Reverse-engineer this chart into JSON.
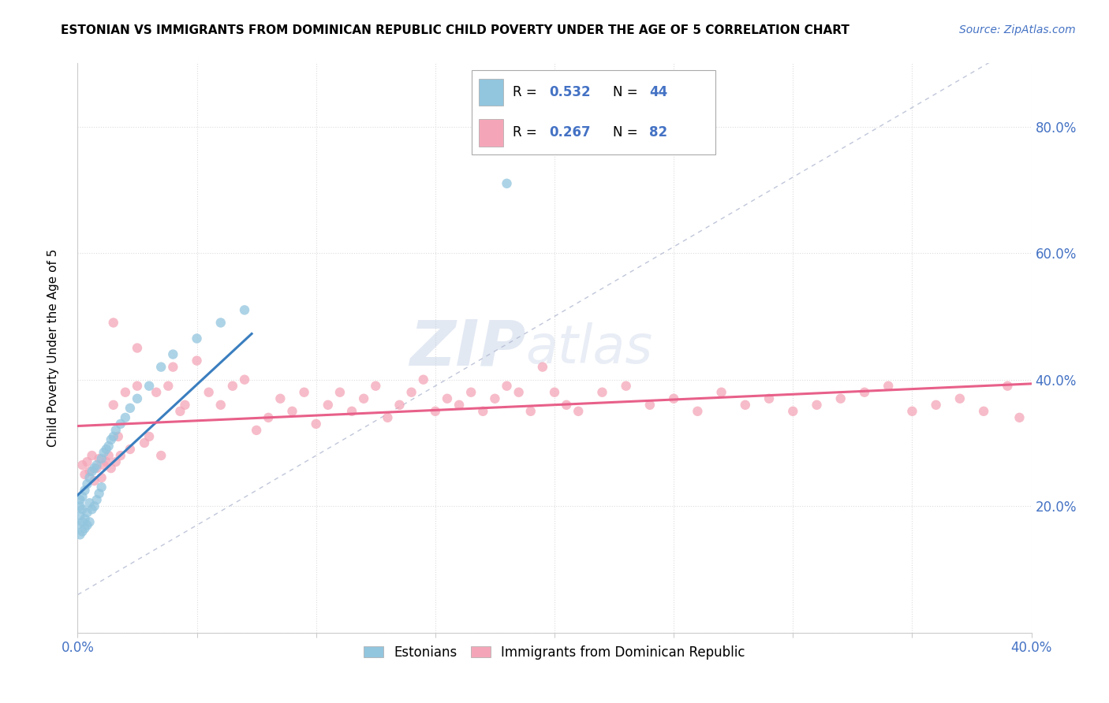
{
  "title": "ESTONIAN VS IMMIGRANTS FROM DOMINICAN REPUBLIC CHILD POVERTY UNDER THE AGE OF 5 CORRELATION CHART",
  "source": "Source: ZipAtlas.com",
  "ylabel": "Child Poverty Under the Age of 5",
  "right_yticks": [
    "20.0%",
    "40.0%",
    "60.0%",
    "80.0%"
  ],
  "right_ytick_vals": [
    0.2,
    0.4,
    0.6,
    0.8
  ],
  "xlim": [
    0.0,
    0.4
  ],
  "ylim": [
    0.0,
    0.9
  ],
  "blue_color": "#92c5de",
  "pink_color": "#f4a6b8",
  "blue_line_color": "#3a7ebf",
  "pink_line_color": "#e8608a",
  "diag_color": "#b0b8d0",
  "watermark_color": "#c8d4e8",
  "grid_color": "#dddddd",
  "tick_color": "#4472c4",
  "title_fontsize": 11,
  "source_fontsize": 10,
  "tick_fontsize": 12,
  "ylabel_fontsize": 11,
  "scatter_size": 80,
  "scatter_alpha": 0.75,
  "est_x": [
    0.0,
    0.001,
    0.001,
    0.001,
    0.001,
    0.002,
    0.002,
    0.002,
    0.002,
    0.003,
    0.003,
    0.003,
    0.004,
    0.004,
    0.004,
    0.005,
    0.005,
    0.005,
    0.006,
    0.006,
    0.007,
    0.007,
    0.008,
    0.008,
    0.009,
    0.01,
    0.01,
    0.011,
    0.012,
    0.013,
    0.014,
    0.015,
    0.016,
    0.018,
    0.02,
    0.022,
    0.025,
    0.03,
    0.035,
    0.04,
    0.05,
    0.06,
    0.07,
    0.18
  ],
  "est_y": [
    0.17,
    0.155,
    0.185,
    0.2,
    0.21,
    0.16,
    0.175,
    0.195,
    0.215,
    0.165,
    0.18,
    0.225,
    0.17,
    0.19,
    0.235,
    0.175,
    0.205,
    0.245,
    0.195,
    0.255,
    0.2,
    0.26,
    0.21,
    0.265,
    0.22,
    0.23,
    0.275,
    0.285,
    0.29,
    0.295,
    0.305,
    0.31,
    0.32,
    0.33,
    0.34,
    0.355,
    0.37,
    0.39,
    0.42,
    0.44,
    0.465,
    0.49,
    0.51,
    0.71
  ],
  "dom_x": [
    0.002,
    0.003,
    0.004,
    0.005,
    0.006,
    0.007,
    0.008,
    0.009,
    0.01,
    0.011,
    0.012,
    0.013,
    0.014,
    0.015,
    0.016,
    0.017,
    0.018,
    0.02,
    0.022,
    0.025,
    0.028,
    0.03,
    0.033,
    0.035,
    0.038,
    0.04,
    0.043,
    0.045,
    0.05,
    0.055,
    0.06,
    0.065,
    0.07,
    0.075,
    0.08,
    0.085,
    0.09,
    0.095,
    0.1,
    0.105,
    0.11,
    0.115,
    0.12,
    0.125,
    0.13,
    0.135,
    0.14,
    0.145,
    0.15,
    0.155,
    0.16,
    0.165,
    0.17,
    0.175,
    0.18,
    0.185,
    0.19,
    0.195,
    0.2,
    0.205,
    0.21,
    0.22,
    0.23,
    0.24,
    0.25,
    0.26,
    0.27,
    0.28,
    0.29,
    0.3,
    0.31,
    0.32,
    0.33,
    0.34,
    0.35,
    0.36,
    0.37,
    0.38,
    0.39,
    0.395,
    0.015,
    0.025
  ],
  "dom_y": [
    0.265,
    0.25,
    0.27,
    0.255,
    0.28,
    0.24,
    0.26,
    0.275,
    0.245,
    0.265,
    0.27,
    0.28,
    0.26,
    0.36,
    0.27,
    0.31,
    0.28,
    0.38,
    0.29,
    0.39,
    0.3,
    0.31,
    0.38,
    0.28,
    0.39,
    0.42,
    0.35,
    0.36,
    0.43,
    0.38,
    0.36,
    0.39,
    0.4,
    0.32,
    0.34,
    0.37,
    0.35,
    0.38,
    0.33,
    0.36,
    0.38,
    0.35,
    0.37,
    0.39,
    0.34,
    0.36,
    0.38,
    0.4,
    0.35,
    0.37,
    0.36,
    0.38,
    0.35,
    0.37,
    0.39,
    0.38,
    0.35,
    0.42,
    0.38,
    0.36,
    0.35,
    0.38,
    0.39,
    0.36,
    0.37,
    0.35,
    0.38,
    0.36,
    0.37,
    0.35,
    0.36,
    0.37,
    0.38,
    0.39,
    0.35,
    0.36,
    0.37,
    0.35,
    0.39,
    0.34,
    0.49,
    0.45
  ]
}
